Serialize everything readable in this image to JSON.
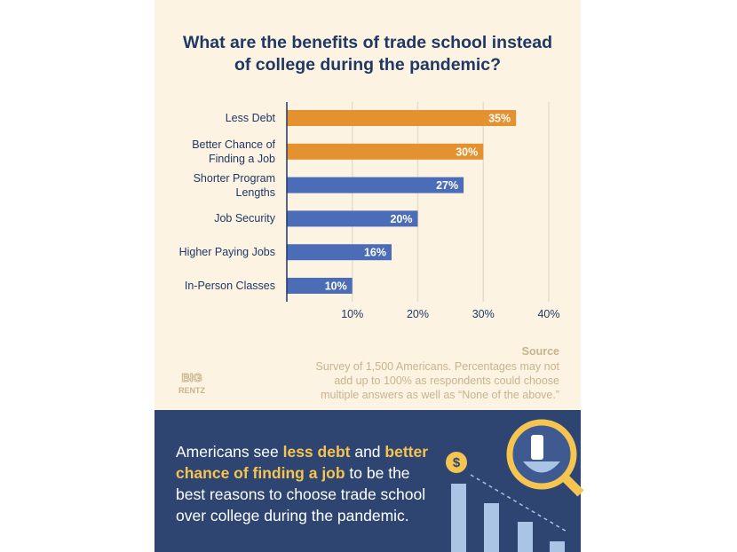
{
  "chart_data": {
    "type": "bar",
    "orientation": "horizontal",
    "title": "What are the benefits of trade school instead\nof college during the pandemic?",
    "categories": [
      "Less Debt",
      "Better Chance of\nFinding a Job",
      "Shorter Program\nLengths",
      "Job Security",
      "Higher Paying Jobs",
      "In-Person Classes"
    ],
    "values": [
      35,
      30,
      27,
      20,
      16,
      10
    ],
    "value_labels": [
      "35%",
      "30%",
      "27%",
      "20%",
      "16%",
      "10%"
    ],
    "colors": [
      "#e4922f",
      "#e4922f",
      "#4b6cb7",
      "#4b6cb7",
      "#4b6cb7",
      "#4b6cb7"
    ],
    "xlim": [
      0,
      40
    ],
    "xticks": [
      {
        "value": 10,
        "label": "10%"
      },
      {
        "value": 20,
        "label": "20%"
      },
      {
        "value": 30,
        "label": "30%"
      },
      {
        "value": 40,
        "label": "40%"
      }
    ],
    "grid": true,
    "source_title": "Source",
    "source_note": "Survey of 1,500 Americans. Percentages may not\nadd up to 100% as respondents could choose\nmultiple answers as well as “None of the above.”"
  },
  "logo": {
    "line1": "BIG",
    "line2": "RENTZ"
  },
  "bottom": {
    "parts": [
      {
        "text": "Americans see ",
        "highlight": false
      },
      {
        "text": "less debt",
        "highlight": true
      },
      {
        "text": " and ",
        "highlight": false
      },
      {
        "text": "better\nchance of finding a job",
        "highlight": true
      },
      {
        "text": " to be the\nbest reasons to choose trade school\nover college during the pandemic.",
        "highlight": false
      }
    ],
    "icon_symbol": "$"
  }
}
